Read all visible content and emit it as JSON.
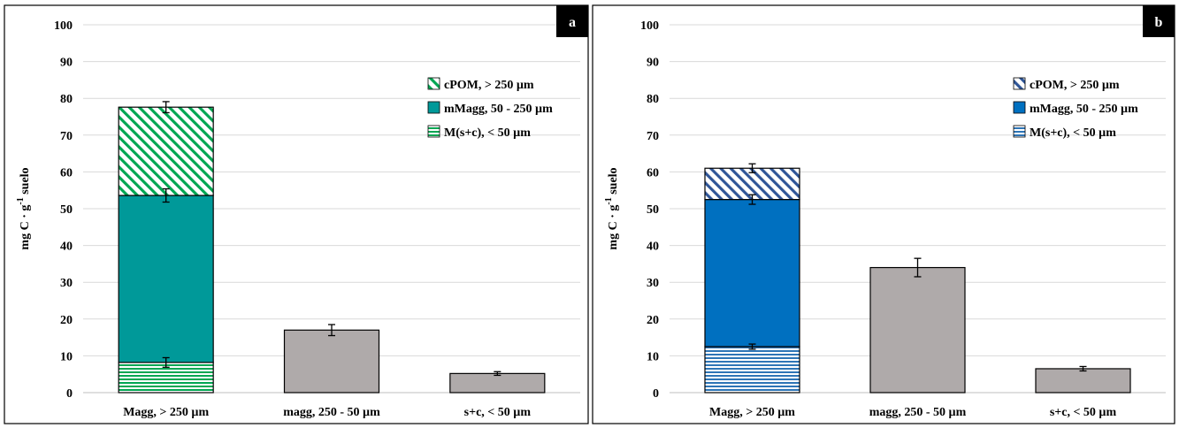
{
  "chart_data": [
    {
      "type": "bar",
      "stacked": true,
      "panel_label": "a",
      "ylabel": "mg C · g",
      "ylabel_sup": "-1",
      "ylabel_tail": " suelo",
      "ylim": [
        0,
        100
      ],
      "yticks": [
        "0",
        "10",
        "20",
        "30",
        "40",
        "50",
        "60",
        "70",
        "80",
        "90",
        "100"
      ],
      "grid": true,
      "legend_position": "top-right",
      "categories": [
        "Magg, > 250 µm",
        "magg, 250 - 50 µm",
        "s+c, < 50 µm"
      ],
      "series": [
        {
          "name": "M(s+c), < 50 µm",
          "color": "#00a652",
          "pattern": "horizontal-lines",
          "values": [
            8.2,
            null,
            null
          ],
          "error": [
            1.3,
            null,
            null
          ]
        },
        {
          "name": "mMagg, 50 - 250 µm",
          "color": "#009999",
          "pattern": "solid",
          "values": [
            45.4,
            null,
            null
          ],
          "error": [
            1.8,
            null,
            null
          ]
        },
        {
          "name": "cPOM, > 250 µm",
          "color": "#00a652",
          "pattern": "diagonal-hatch",
          "values": [
            24.0,
            null,
            null
          ],
          "error": [
            1.5,
            null,
            null
          ]
        },
        {
          "name": "",
          "color": "#afaaaa",
          "pattern": "solid",
          "values": [
            null,
            17.0,
            5.2
          ],
          "error": [
            null,
            1.5,
            0.5
          ]
        }
      ]
    },
    {
      "type": "bar",
      "stacked": true,
      "panel_label": "b",
      "ylabel": "mg C · g",
      "ylabel_sup": "-1",
      "ylabel_tail": " suelo",
      "ylim": [
        0,
        100
      ],
      "yticks": [
        "0",
        "10",
        "20",
        "30",
        "40",
        "50",
        "60",
        "70",
        "80",
        "90",
        "100"
      ],
      "grid": true,
      "legend_position": "top-right",
      "categories": [
        "Magg, > 250 µm",
        "magg, 250 - 50 µm",
        "s+c, < 50 µm"
      ],
      "series": [
        {
          "name": "M(s+c), < 50 µm",
          "color": "#2e75b6",
          "pattern": "horizontal-lines",
          "values": [
            12.5,
            null,
            null
          ],
          "error": [
            0.7,
            null,
            null
          ]
        },
        {
          "name": "mMagg, 50 - 250 µm",
          "color": "#0070c0",
          "pattern": "solid",
          "values": [
            40.0,
            null,
            null
          ],
          "error": [
            1.3,
            null,
            null
          ]
        },
        {
          "name": "cPOM, > 250 µm",
          "color": "#2f5597",
          "pattern": "diagonal-hatch",
          "values": [
            8.5,
            null,
            null
          ],
          "error": [
            1.2,
            null,
            null
          ]
        },
        {
          "name": "",
          "color": "#afaaaa",
          "pattern": "solid",
          "values": [
            null,
            34.0,
            6.5
          ],
          "error": [
            null,
            2.5,
            0.6
          ]
        }
      ]
    }
  ]
}
